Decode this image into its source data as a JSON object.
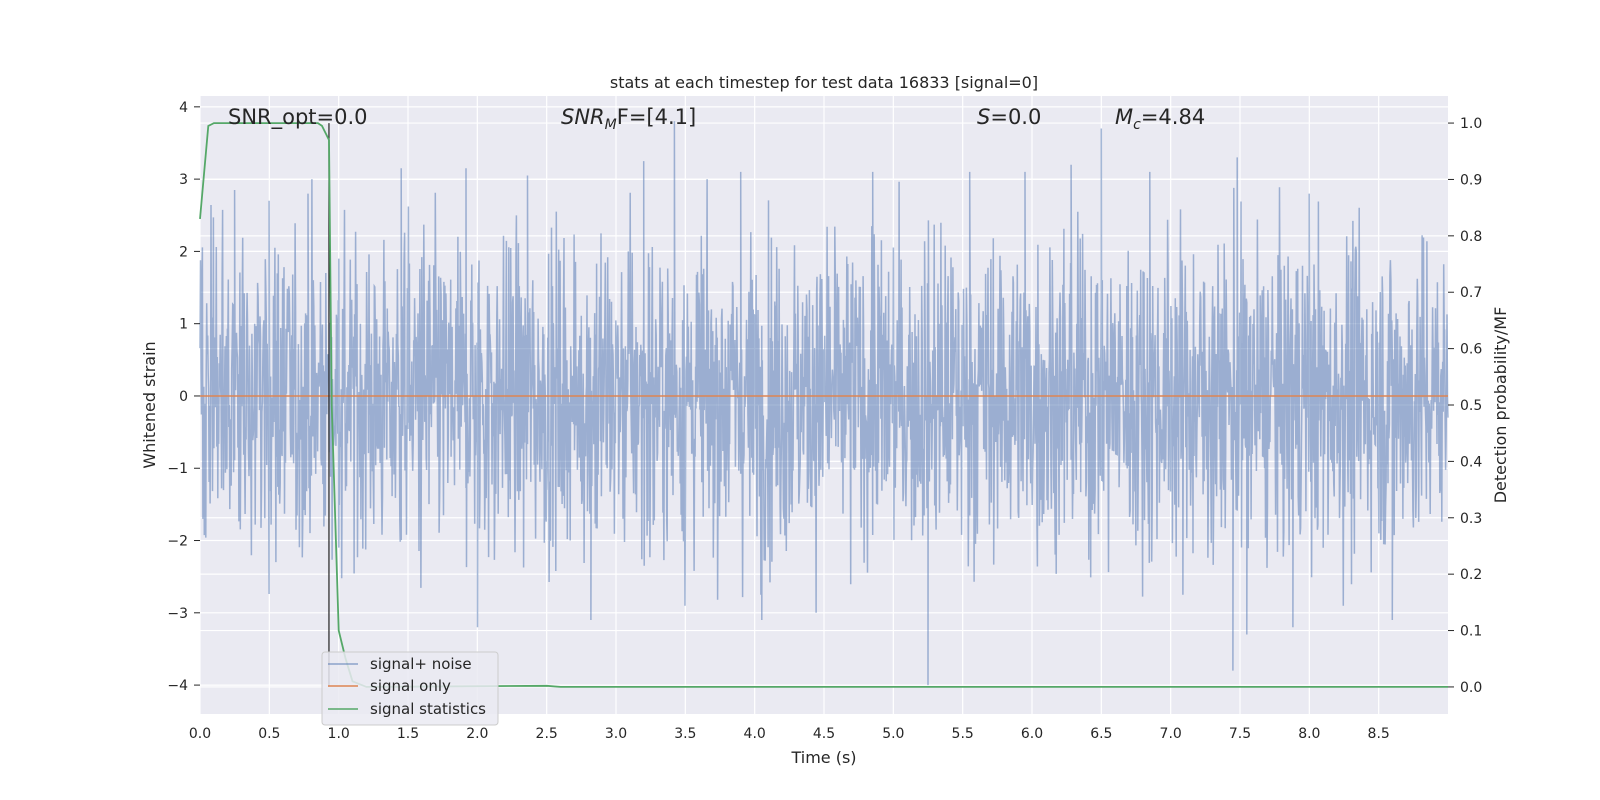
{
  "chart_data": {
    "type": "line",
    "title": "stats at each timestep for test data 16833 [signal=0]",
    "xlabel": "Time (s)",
    "ylabel": "Whitened strain",
    "y2label": "Detection probability/MF",
    "xlim": [
      0.0,
      9.0
    ],
    "ylim": [
      -4.4,
      4.15
    ],
    "y2lim": [
      -0.048,
      1.048
    ],
    "xticks": [
      "0.0",
      "0.5",
      "1.0",
      "1.5",
      "2.0",
      "2.5",
      "3.0",
      "3.5",
      "4.0",
      "4.5",
      "5.0",
      "5.5",
      "6.0",
      "6.5",
      "7.0",
      "7.5",
      "8.0",
      "8.5"
    ],
    "yticks": [
      "4",
      "3",
      "2",
      "1",
      "0",
      "−1",
      "−2",
      "−3",
      "−4"
    ],
    "y2ticks": [
      "1.0",
      "0.9",
      "0.8",
      "0.7",
      "0.6",
      "0.5",
      "0.4",
      "0.3",
      "0.2",
      "0.1",
      "0.0"
    ],
    "grid": true,
    "legend_location": "lower-left",
    "annotations": {
      "snr_opt": "SNR_opt=0.0",
      "snr_mf_main": "SNR",
      "snr_mf_sub": "M",
      "snr_mf_rest": "F=[4.1]",
      "s_var": "S",
      "s_rest": "=0.0",
      "mc_var": "M",
      "mc_sub": "c",
      "mc_rest": "=4.84"
    },
    "vline_x": 0.93,
    "series": [
      {
        "name": "signal+ noise",
        "color": "#4c72b0",
        "description": "whitened strain noise, approx. ±1.5 with peaks to ±3.8",
        "noise_envelope": 1.5,
        "spikes": [
          {
            "x": 0.25,
            "y": 2.85
          },
          {
            "x": 0.5,
            "y": 2.7
          },
          {
            "x": 0.78,
            "y": 2.8
          },
          {
            "x": 1.45,
            "y": 3.15
          },
          {
            "x": 1.92,
            "y": 3.15
          },
          {
            "x": 2.0,
            "y": -3.2
          },
          {
            "x": 2.36,
            "y": 3.05
          },
          {
            "x": 2.82,
            "y": -3.1
          },
          {
            "x": 3.2,
            "y": 3.25
          },
          {
            "x": 3.42,
            "y": 3.8
          },
          {
            "x": 3.9,
            "y": 3.1
          },
          {
            "x": 4.05,
            "y": -3.1
          },
          {
            "x": 4.85,
            "y": 3.1
          },
          {
            "x": 5.25,
            "y": -4.0
          },
          {
            "x": 5.55,
            "y": 3.1
          },
          {
            "x": 5.95,
            "y": 3.1
          },
          {
            "x": 6.28,
            "y": 3.2
          },
          {
            "x": 6.5,
            "y": 3.7
          },
          {
            "x": 6.85,
            "y": 3.1
          },
          {
            "x": 7.45,
            "y": -3.8
          },
          {
            "x": 7.48,
            "y": 3.3
          },
          {
            "x": 7.55,
            "y": -3.3
          },
          {
            "x": 7.88,
            "y": -3.2
          },
          {
            "x": 8.0,
            "y": 2.8
          },
          {
            "x": 8.6,
            "y": -3.1
          },
          {
            "x": 8.1,
            "y": -2.1
          },
          {
            "x": 8.3,
            "y": 1.3
          },
          {
            "x": 1.0,
            "y": 1.9
          },
          {
            "x": 2.5,
            "y": -1.3
          },
          {
            "x": 7.85,
            "y": -0.5
          }
        ]
      },
      {
        "name": "signal only",
        "color": "#dd8452",
        "x": [
          0.0,
          9.0
        ],
        "y": [
          0.0,
          0.0
        ]
      },
      {
        "name": "signal statistics",
        "color": "#55a868",
        "axis": "right",
        "x": [
          0.0,
          0.06,
          0.1,
          0.15,
          0.2,
          0.5,
          0.85,
          0.88,
          0.93,
          0.95,
          1.0,
          1.05,
          1.1,
          1.2,
          2.5,
          2.6,
          9.0
        ],
        "y": [
          0.83,
          0.995,
          1.0,
          1.0,
          1.0,
          1.0,
          1.0,
          0.995,
          0.97,
          0.5,
          0.1,
          0.05,
          0.01,
          0.0,
          0.002,
          0.0,
          0.0
        ]
      }
    ]
  }
}
